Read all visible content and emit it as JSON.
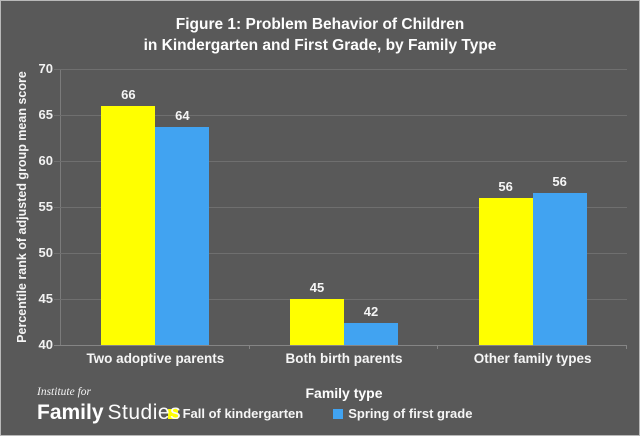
{
  "title": {
    "line1": "Figure 1: Problem Behavior of Children",
    "line2": "in Kindergarten and First Grade, by Family Type"
  },
  "chart_data": {
    "type": "bar",
    "title": "Figure 1: Problem Behavior of Children in Kindergarten and First Grade, by Family Type",
    "categories": [
      "Two adoptive parents",
      "Both birth parents",
      "Other family types"
    ],
    "series": [
      {
        "name": "Fall of kindergarten",
        "color": "#ffff00",
        "values": [
          66,
          45,
          56
        ],
        "rendered_values": [
          66,
          45,
          56
        ]
      },
      {
        "name": "Spring of first grade",
        "color": "#41a3f1",
        "values": [
          64,
          42,
          56
        ],
        "rendered_values": [
          63.7,
          42.4,
          56.5
        ]
      }
    ],
    "xlabel": "Family type",
    "ylabel": "Percentile rank of adjusted group mean score",
    "ylim": [
      40,
      70
    ],
    "yticks": [
      70,
      65,
      60,
      55,
      50,
      45,
      40
    ],
    "grid": true,
    "legend_position": "bottom"
  },
  "branding": {
    "tagline": "Institute for",
    "name_bold": "Family",
    "name_light": "Studies"
  },
  "colors": {
    "background": "#595959",
    "bar_yellow": "#ffff00",
    "bar_blue": "#41a3f1",
    "text": "#ffffff",
    "gridline": "#6f6f6f",
    "axis": "#858585"
  }
}
